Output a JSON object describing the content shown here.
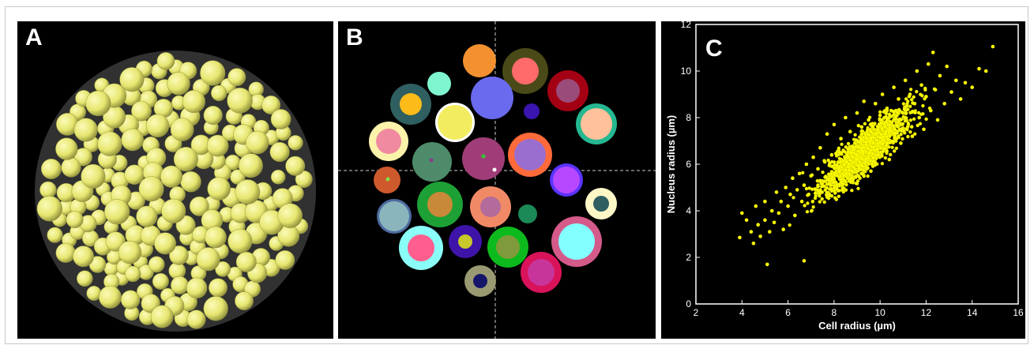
{
  "panels": {
    "a": {
      "label": "A"
    },
    "b": {
      "label": "B"
    },
    "c": {
      "label": "C"
    }
  },
  "colors": {
    "cell": "#e6e670",
    "background": "#000000",
    "scatter_point": "#ffff00"
  },
  "chart_data": {
    "type": "scatter",
    "xlabel": "Cell radius (µm)",
    "ylabel": "Nucleus radius (µm)",
    "xlim": [
      2,
      16
    ],
    "ylim": [
      0,
      12
    ],
    "xticks": [
      "2",
      "4",
      "6",
      "8",
      "10",
      "12",
      "14",
      "16"
    ],
    "yticks": [
      "0",
      "2",
      "4",
      "6",
      "8",
      "10",
      "12"
    ],
    "points": [
      [
        3.9,
        2.85
      ],
      [
        4.0,
        3.9
      ],
      [
        4.2,
        3.6
      ],
      [
        4.4,
        3.1
      ],
      [
        4.5,
        2.6
      ],
      [
        4.6,
        4.2
      ],
      [
        4.7,
        3.4
      ],
      [
        4.8,
        2.9
      ],
      [
        5.0,
        3.6
      ],
      [
        5.0,
        4.4
      ],
      [
        5.1,
        1.7
      ],
      [
        5.2,
        3.1
      ],
      [
        5.3,
        4.0
      ],
      [
        5.4,
        3.5
      ],
      [
        5.5,
        4.8
      ],
      [
        5.6,
        3.9
      ],
      [
        5.7,
        4.4
      ],
      [
        5.8,
        3.2
      ],
      [
        5.9,
        5.0
      ],
      [
        6.0,
        4.2
      ],
      [
        6.1,
        4.7
      ],
      [
        6.2,
        5.4
      ],
      [
        6.3,
        3.8
      ],
      [
        6.4,
        4.9
      ],
      [
        6.5,
        5.6
      ],
      [
        6.6,
        4.4
      ],
      [
        6.7,
        1.85
      ],
      [
        6.7,
        5.1
      ],
      [
        6.8,
        6.0
      ],
      [
        6.9,
        4.7
      ],
      [
        7.0,
        5.5
      ],
      [
        7.1,
        6.3
      ],
      [
        7.2,
        4.9
      ],
      [
        7.3,
        5.8
      ],
      [
        7.4,
        6.7
      ],
      [
        7.5,
        5.2
      ],
      [
        7.6,
        6.1
      ],
      [
        7.7,
        7.3
      ],
      [
        7.8,
        5.5
      ],
      [
        7.9,
        6.4
      ],
      [
        8.0,
        7.7
      ],
      [
        8.1,
        5.0
      ],
      [
        8.2,
        6.6
      ],
      [
        8.3,
        7.1
      ],
      [
        8.4,
        5.8
      ],
      [
        8.5,
        8.0
      ],
      [
        8.6,
        6.3
      ],
      [
        8.7,
        7.4
      ],
      [
        8.8,
        5.3
      ],
      [
        8.9,
        6.9
      ],
      [
        9.0,
        8.2
      ],
      [
        9.1,
        6.0
      ],
      [
        9.2,
        7.6
      ],
      [
        9.3,
        8.7
      ],
      [
        9.4,
        6.5
      ],
      [
        9.5,
        7.9
      ],
      [
        9.6,
        5.7
      ],
      [
        9.7,
        7.2
      ],
      [
        9.8,
        8.6
      ],
      [
        9.9,
        6.8
      ],
      [
        10.0,
        8.1
      ],
      [
        10.1,
        9.0
      ],
      [
        10.2,
        7.0
      ],
      [
        10.3,
        8.4
      ],
      [
        10.4,
        6.2
      ],
      [
        10.5,
        7.7
      ],
      [
        10.6,
        9.3
      ],
      [
        10.7,
        7.4
      ],
      [
        10.8,
        8.8
      ],
      [
        10.9,
        6.9
      ],
      [
        11.0,
        8.2
      ],
      [
        11.1,
        9.6
      ],
      [
        11.2,
        7.6
      ],
      [
        11.3,
        9.0
      ],
      [
        11.4,
        7.2
      ],
      [
        11.5,
        8.6
      ],
      [
        11.6,
        10.0
      ],
      [
        11.7,
        8.0
      ],
      [
        11.8,
        9.4
      ],
      [
        11.9,
        7.5
      ],
      [
        12.0,
        8.9
      ],
      [
        12.1,
        10.3
      ],
      [
        12.2,
        8.3
      ],
      [
        12.3,
        10.8
      ],
      [
        12.4,
        9.2
      ],
      [
        12.5,
        7.9
      ],
      [
        12.6,
        9.8
      ],
      [
        12.8,
        8.6
      ],
      [
        12.9,
        10.2
      ],
      [
        13.1,
        9.1
      ],
      [
        13.3,
        9.6
      ],
      [
        13.5,
        8.8
      ],
      [
        13.7,
        9.5
      ],
      [
        14.0,
        9.3
      ],
      [
        14.3,
        10.1
      ],
      [
        14.6,
        10.0
      ],
      [
        14.9,
        11.05
      ]
    ]
  }
}
